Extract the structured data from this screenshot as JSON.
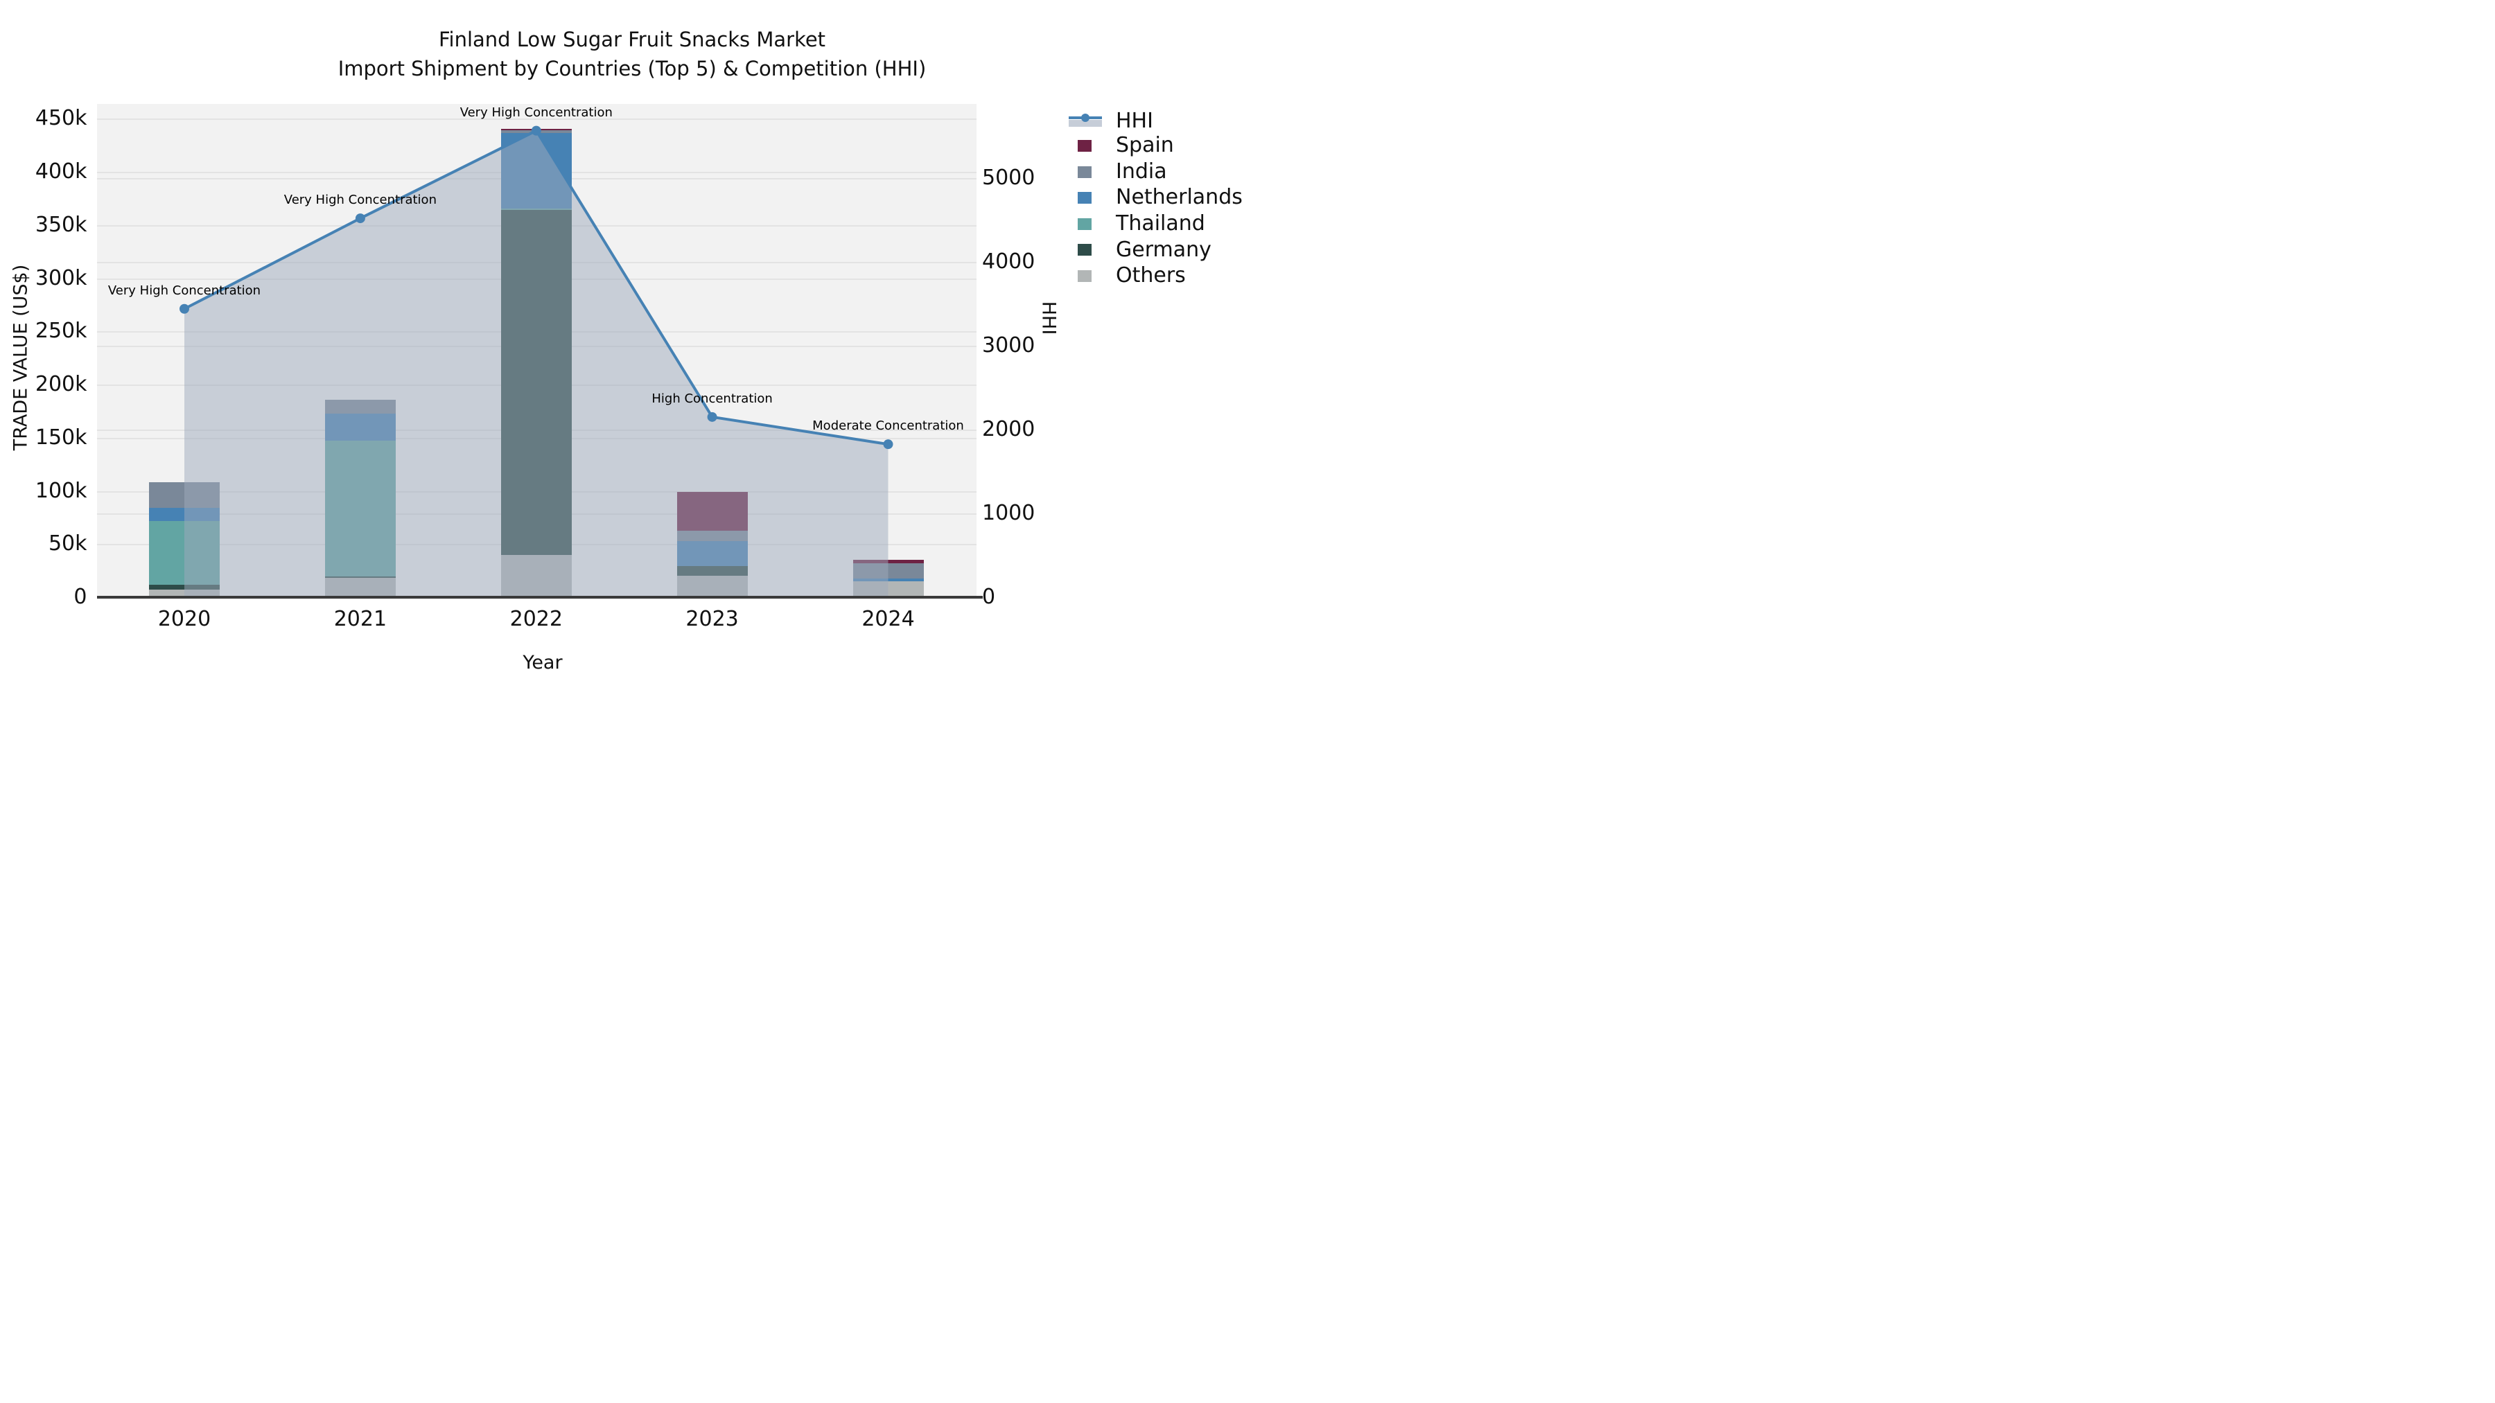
{
  "title": {
    "line1": "Finland Low Sugar Fruit Snacks Market",
    "line2": "Import Shipment by Countries (Top 5) & Competition (HHI)"
  },
  "axes": {
    "left": {
      "label": "TRADE VALUE (US$)",
      "tick_labels": [
        "0",
        "50k",
        "100k",
        "150k",
        "200k",
        "250k",
        "300k",
        "350k",
        "400k",
        "450k"
      ],
      "tick_values_k": [
        0,
        50,
        100,
        150,
        200,
        250,
        300,
        350,
        400,
        450
      ]
    },
    "right": {
      "label": "HHI",
      "tick_labels": [
        "0",
        "1000",
        "2000",
        "3000",
        "4000",
        "5000"
      ],
      "tick_values": [
        0,
        1000,
        2000,
        3000,
        4000,
        5000
      ]
    },
    "x": {
      "label": "Year",
      "categories": [
        "2020",
        "2021",
        "2022",
        "2023",
        "2024"
      ]
    }
  },
  "legend": {
    "items": [
      {
        "label": "HHI",
        "type": "line",
        "color": "#4682b4"
      },
      {
        "label": "Spain",
        "type": "patch",
        "color": "#6e2244"
      },
      {
        "label": "India",
        "type": "patch",
        "color": "#7a8899"
      },
      {
        "label": "Netherlands",
        "type": "patch",
        "color": "#4682b4"
      },
      {
        "label": "Thailand",
        "type": "patch",
        "color": "#62a5a3"
      },
      {
        "label": "Germany",
        "type": "patch",
        "color": "#2e4c49"
      },
      {
        "label": "Others",
        "type": "patch",
        "color": "#b2b6b6"
      }
    ]
  },
  "chart_data": {
    "type": "bar",
    "subtype": "stacked-bars-with-line",
    "categories": [
      "2020",
      "2021",
      "2022",
      "2023",
      "2024"
    ],
    "values_unit": "thousand US$",
    "title": "Finland Low Sugar Fruit Snacks Market — Import Shipment by Countries (Top 5) & Competition (HHI)",
    "xlabel": "Year",
    "ylabel_left": "TRADE VALUE (US$)",
    "ylabel_right": "HHI",
    "ylim_left_k": [
      0,
      464
    ],
    "ylim_right": [
      0,
      5880
    ],
    "grid": true,
    "legend_position": "right",
    "series": [
      {
        "name": "Others",
        "color": "#b2b6b6",
        "values": [
          7,
          18,
          40,
          20,
          15.3
        ]
      },
      {
        "name": "Germany",
        "color": "#2e4c49",
        "values": [
          5,
          1.5,
          324,
          9.5,
          0
        ]
      },
      {
        "name": "Thailand",
        "color": "#62a5a3",
        "values": [
          60,
          128,
          1.5,
          0,
          0
        ]
      },
      {
        "name": "Netherlands",
        "color": "#4682b4",
        "values": [
          12,
          25,
          71,
          23,
          2.6
        ]
      },
      {
        "name": "India",
        "color": "#7a8899",
        "values": [
          24.5,
          13,
          3,
          10,
          14
        ]
      },
      {
        "name": "Spain",
        "color": "#6e2244",
        "values": [
          0,
          0,
          1,
          36.5,
          3
        ]
      }
    ],
    "hhi_line": {
      "name": "HHI",
      "color": "#4682b4",
      "area_fill": "rgba(158,170,188,0.5)",
      "values": [
        3440,
        4520,
        5565,
        2150,
        1825
      ],
      "annotations": [
        "Very High Concentration",
        "Very High Concentration",
        "Very High Concentration",
        "High Concentration",
        "Moderate Concentration"
      ]
    }
  }
}
